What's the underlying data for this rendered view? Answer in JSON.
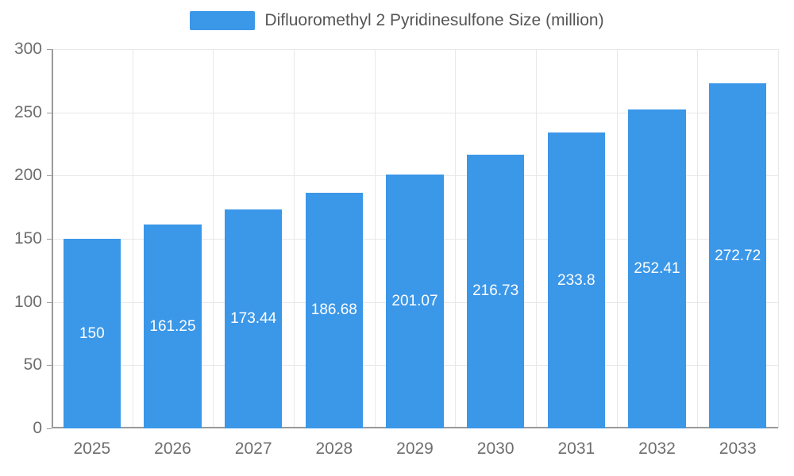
{
  "legend": {
    "label": "Difluoromethyl 2 Pyridinesulfone Size (million)",
    "color": "#3B97E8"
  },
  "chart_data": {
    "type": "bar",
    "title": "Difluoromethyl 2 Pyridinesulfone Size (million)",
    "categories": [
      "2025",
      "2026",
      "2027",
      "2028",
      "2029",
      "2030",
      "2031",
      "2032",
      "2033"
    ],
    "values": [
      150,
      161.25,
      173.44,
      186.68,
      201.07,
      216.73,
      233.8,
      252.41,
      272.72
    ],
    "value_labels": [
      "150",
      "161.25",
      "173.44",
      "186.68",
      "201.07",
      "216.73",
      "233.8",
      "252.41",
      "272.72"
    ],
    "xlabel": "",
    "ylabel": "",
    "ylim": [
      0,
      300
    ],
    "yticks": [
      0,
      50,
      100,
      150,
      200,
      250,
      300
    ],
    "grid": true,
    "legend_position": "top",
    "bar_color": "#3B97E8",
    "value_label_color": "#ffffff"
  }
}
